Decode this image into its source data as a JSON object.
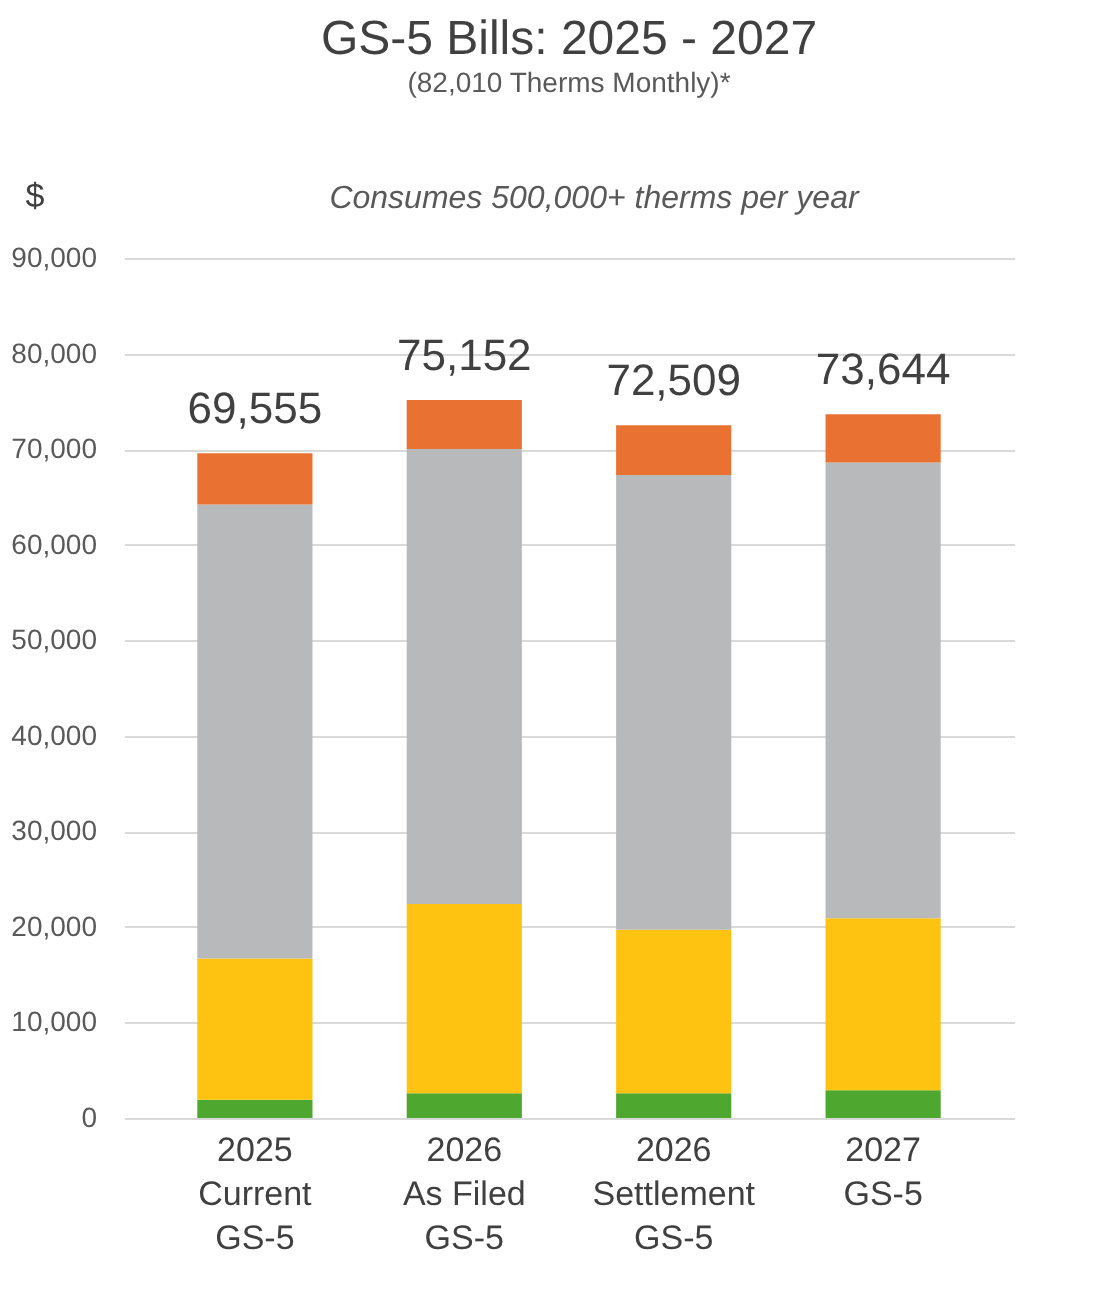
{
  "chart_data": {
    "type": "bar",
    "title": "GS-5 Bills: 2025 - 2027",
    "subtitle": "(82,010 Therms Monthly)*",
    "annotations": [
      "Consumes 500,000+ therms per year"
    ],
    "ylabel": "$",
    "categories": [
      "2025\nCurrent\nGS-5",
      "2026\nAs Filed\nGS-5",
      "2026\nSettlement\nGS-5",
      "2027\nGS-5"
    ],
    "stacked": true,
    "series": [
      {
        "color": "#4ea72e",
        "values": [
          1900,
          2600,
          2600,
          2900
        ]
      },
      {
        "color": "#fec311",
        "values": [
          14800,
          19800,
          17100,
          18000
        ]
      },
      {
        "color": "#b8b9bb",
        "values": [
          47500,
          47600,
          47600,
          47700
        ]
      },
      {
        "color": "#e97132",
        "values": [
          5355,
          5152,
          5209,
          5044
        ]
      }
    ],
    "totals": [
      "69,555",
      "75,152",
      "72,509",
      "73,644"
    ],
    "ylim": [
      0,
      90000
    ],
    "yticks": [
      0,
      {
        "value": 10000,
        "label": "10,000"
      },
      {
        "value": 20000,
        "label": "20,000"
      },
      {
        "value": 30000,
        "label": "30,000"
      },
      {
        "value": 40000,
        "label": "40,000"
      },
      {
        "value": 50000,
        "label": "50,000"
      },
      {
        "value": 60000,
        "label": "60,000"
      },
      {
        "value": 70000,
        "label": "70,000"
      },
      {
        "value": 80000,
        "label": "80,000"
      },
      {
        "value": 90000,
        "label": "90,000"
      }
    ],
    "grid": "y"
  }
}
